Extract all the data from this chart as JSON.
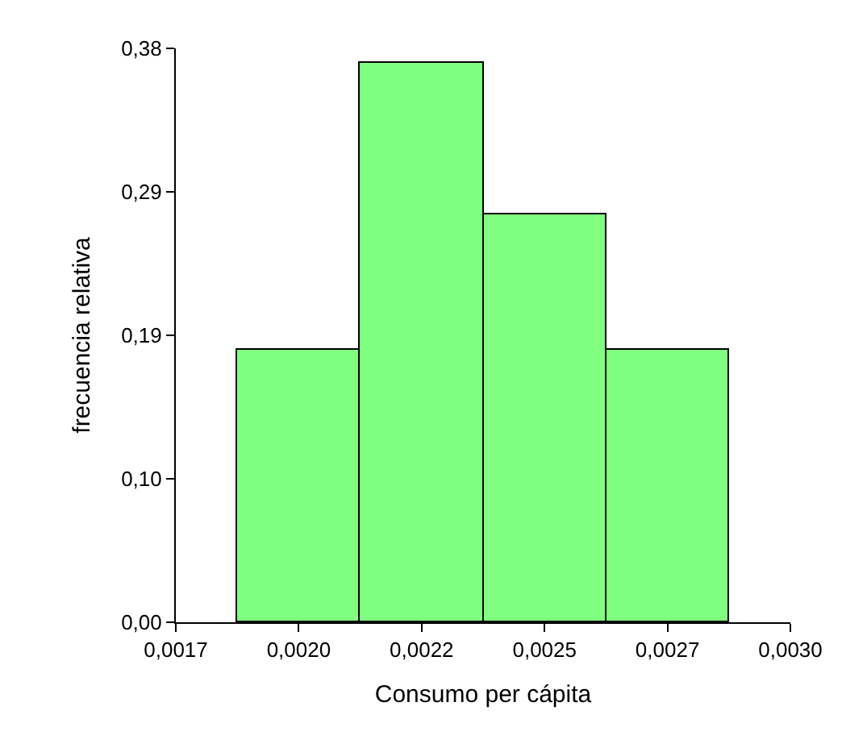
{
  "chart_data": {
    "type": "histogram",
    "xlabel": "Consumo per cápita",
    "ylabel": "frecuencia relativa",
    "bins": [
      0.00183,
      0.00209,
      0.00235,
      0.00261,
      0.00287
    ],
    "values": [
      0.18,
      0.37,
      0.27,
      0.18
    ],
    "color": "#80ff80",
    "xlim": [
      0.0017,
      0.003
    ],
    "xticks": [
      {
        "value": 0.0017,
        "label": "0,0017"
      },
      {
        "value": 0.00196,
        "label": "0,0020"
      },
      {
        "value": 0.00222,
        "label": "0,0022"
      },
      {
        "value": 0.00248,
        "label": "0,0025"
      },
      {
        "value": 0.00274,
        "label": "0,0027"
      },
      {
        "value": 0.003,
        "label": "0,0030"
      }
    ],
    "ylim": [
      0,
      0.38
    ],
    "yticks": [
      {
        "value": 0,
        "label": "0,00"
      },
      {
        "value": 0.095,
        "label": "0,10"
      },
      {
        "value": 0.19,
        "label": "0,19"
      },
      {
        "value": 0.285,
        "label": "0,29"
      },
      {
        "value": 0.38,
        "label": "0,38"
      }
    ]
  }
}
